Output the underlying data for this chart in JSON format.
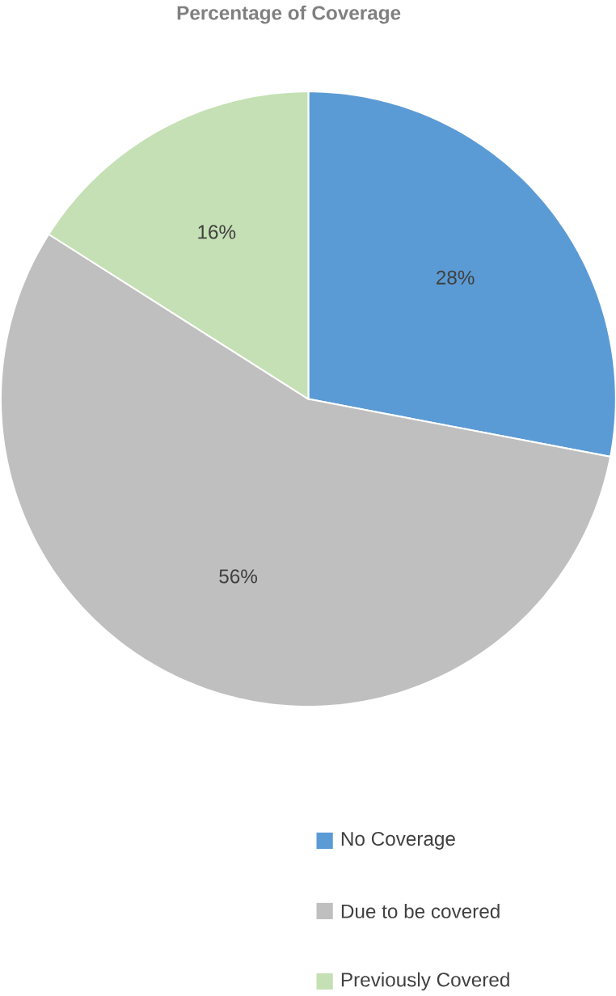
{
  "chart_data": {
    "type": "pie",
    "title": "Percentage of Coverage",
    "categories": [
      "No Coverage",
      "Due to be covered",
      "Previously Covered"
    ],
    "values": [
      28,
      56,
      16
    ],
    "colors": [
      "#5b9bd5",
      "#bfbfbf",
      "#c5e0b4"
    ],
    "value_labels": [
      "28%",
      "56%",
      "16%"
    ],
    "legend": "bottom"
  }
}
